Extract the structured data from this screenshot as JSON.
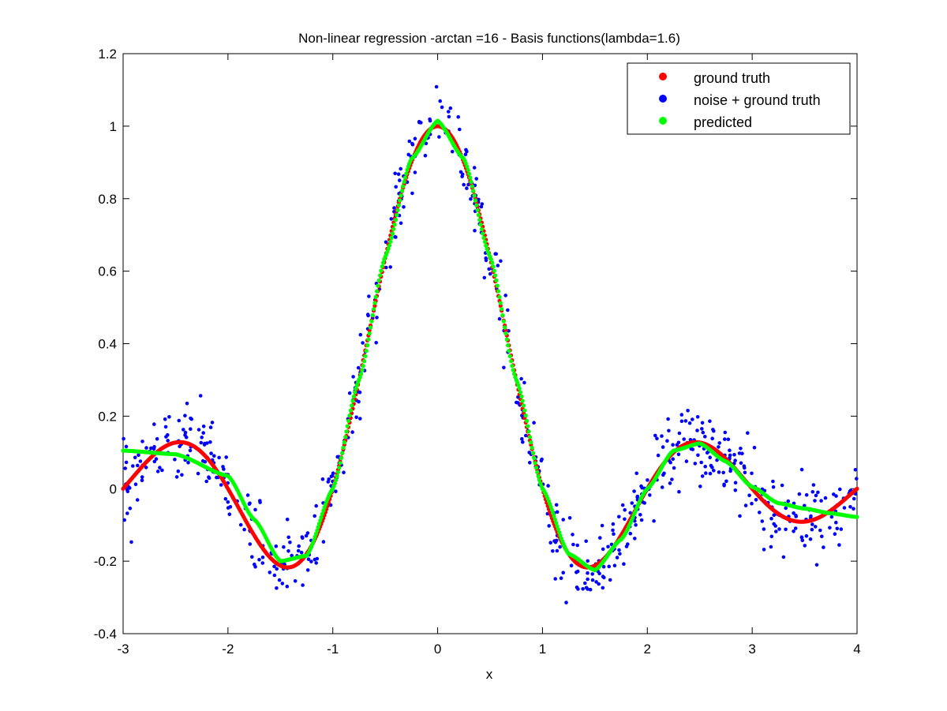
{
  "chart_data": {
    "type": "scatter",
    "title": "Non-linear regression -arctan =16 - Basis functions(lambda=1.6)",
    "xlabel": "x",
    "ylabel": "",
    "xlim": [
      -3,
      4
    ],
    "ylim": [
      -0.4,
      1.2
    ],
    "x_ticks": [
      -3,
      -2,
      -1,
      0,
      1,
      2,
      3,
      4
    ],
    "x_tick_labels": [
      "-3",
      "-2",
      "-1",
      "0",
      "1",
      "2",
      "3",
      "4"
    ],
    "y_ticks": [
      -0.4,
      -0.2,
      0,
      0.2,
      0.4,
      0.6,
      0.8,
      1,
      1.2
    ],
    "y_tick_labels": [
      "-0.4",
      "-0.2",
      "0",
      "0.2",
      "0.4",
      "0.6",
      "0.8",
      "1",
      "1.2"
    ],
    "grid": false,
    "legend_position": "top-right",
    "series": [
      {
        "name": "ground truth",
        "color": "#ff0000",
        "description": "sinc-like curve y = sin(pi*x)/(pi*x)",
        "x": [
          -3.0,
          -2.75,
          -2.5,
          -2.25,
          -2.0,
          -1.75,
          -1.5,
          -1.25,
          -1.0,
          -0.75,
          -0.5,
          -0.25,
          0.0,
          0.25,
          0.5,
          0.75,
          1.0,
          1.25,
          1.5,
          1.75,
          2.0,
          2.25,
          2.5,
          2.75,
          3.0,
          3.25,
          3.5,
          3.75,
          4.0
        ],
        "y": [
          0.0,
          0.082,
          0.127,
          0.1,
          0.0,
          -0.129,
          -0.212,
          -0.18,
          0.0,
          0.3,
          0.637,
          0.9,
          1.0,
          0.9,
          0.637,
          0.3,
          0.0,
          -0.18,
          -0.212,
          -0.129,
          0.0,
          0.1,
          0.127,
          0.082,
          0.0,
          -0.069,
          -0.091,
          -0.06,
          0.0
        ]
      },
      {
        "name": "noise + ground truth",
        "color": "#0000ff",
        "description": "ground truth plus random noise, roughly 700 points over x in [-3, 4]"
      },
      {
        "name": "predicted",
        "color": "#00ff00",
        "description": "regression fit with basis functions",
        "x": [
          -3.0,
          -2.5,
          -2.0,
          -1.75,
          -1.5,
          -1.25,
          -1.0,
          -0.75,
          -0.5,
          -0.25,
          0.0,
          0.25,
          0.5,
          0.75,
          1.0,
          1.25,
          1.5,
          1.75,
          2.0,
          2.25,
          2.5,
          2.75,
          3.0,
          3.25,
          3.5,
          3.75,
          4.0
        ],
        "y": [
          0.105,
          0.095,
          0.035,
          -0.085,
          -0.2,
          -0.185,
          0.0,
          0.3,
          0.64,
          0.91,
          1.015,
          0.91,
          0.64,
          0.3,
          0.0,
          -0.18,
          -0.225,
          -0.14,
          0.0,
          0.105,
          0.125,
          0.075,
          0.005,
          -0.04,
          -0.055,
          -0.068,
          -0.078
        ]
      }
    ]
  }
}
